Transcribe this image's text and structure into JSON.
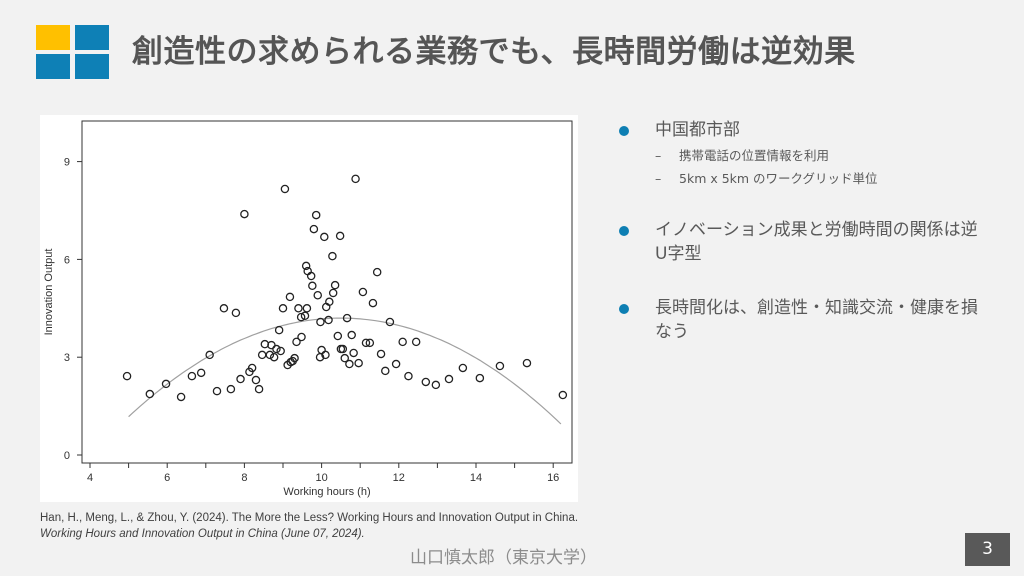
{
  "title": "創造性の求められる業務でも、長時間労働は逆効果",
  "logo_colors": {
    "yellow": "#ffc000",
    "blue": "#0e80b6"
  },
  "bullets": [
    {
      "text": "中国都市部",
      "sub": [
        "携帯電話の位置情報を利用",
        "5km x 5km のワークグリッド単位"
      ]
    },
    {
      "text": "イノベーション成果と労働時間の関係は逆U字型",
      "sub": []
    },
    {
      "text": "長時間化は、創造性・知識交流・健康を損なう",
      "sub": []
    }
  ],
  "citation": {
    "plain": "Han, H., Meng, L., & Zhou, Y. (2024). The More the Less? Working Hours and Innovation Output in China. ",
    "italic": "Working Hours and Innovation Output in China (June 07, 2024)."
  },
  "author": "山口慎太郎（東京大学）",
  "page_number": "3",
  "chart_data": {
    "type": "scatter",
    "xlabel": "Working hours (h)",
    "ylabel": "Innovation Output",
    "xlim": [
      4,
      16.3
    ],
    "ylim": [
      0,
      10.2
    ],
    "xticks": [
      4,
      6,
      8,
      10,
      12,
      14,
      16
    ],
    "yticks": [
      0,
      3,
      6,
      9
    ],
    "grid": false,
    "marker": "hollow-circle",
    "fit": {
      "type": "quadratic",
      "vertex_x": 10.5,
      "vertex_y": 4.2,
      "a": -0.1,
      "x_range": [
        5,
        16.2
      ],
      "color": "#a0a0a0"
    },
    "points": [
      [
        4.96,
        2.42
      ],
      [
        5.55,
        1.87
      ],
      [
        5.97,
        2.18
      ],
      [
        6.36,
        1.78
      ],
      [
        6.64,
        2.42
      ],
      [
        6.88,
        2.52
      ],
      [
        7.1,
        3.07
      ],
      [
        7.29,
        1.96
      ],
      [
        7.47,
        4.5
      ],
      [
        7.65,
        2.02
      ],
      [
        7.78,
        4.36
      ],
      [
        7.9,
        2.33
      ],
      [
        8.0,
        7.39
      ],
      [
        8.13,
        2.55
      ],
      [
        8.2,
        2.67
      ],
      [
        8.3,
        2.3
      ],
      [
        8.38,
        2.02
      ],
      [
        8.46,
        3.07
      ],
      [
        8.53,
        3.4
      ],
      [
        8.66,
        3.07
      ],
      [
        8.7,
        3.37
      ],
      [
        8.77,
        3.0
      ],
      [
        8.83,
        3.25
      ],
      [
        8.9,
        3.83
      ],
      [
        8.94,
        3.19
      ],
      [
        9.0,
        4.5
      ],
      [
        9.05,
        8.16
      ],
      [
        9.12,
        2.76
      ],
      [
        9.18,
        4.85
      ],
      [
        9.2,
        2.85
      ],
      [
        9.25,
        2.88
      ],
      [
        9.3,
        2.97
      ],
      [
        9.35,
        3.47
      ],
      [
        9.4,
        4.5
      ],
      [
        9.47,
        4.23
      ],
      [
        9.48,
        3.62
      ],
      [
        9.57,
        4.27
      ],
      [
        9.6,
        5.8
      ],
      [
        9.62,
        4.5
      ],
      [
        9.64,
        5.64
      ],
      [
        9.73,
        5.49
      ],
      [
        9.76,
        5.19
      ],
      [
        9.8,
        6.93
      ],
      [
        9.86,
        7.36
      ],
      [
        9.9,
        4.9
      ],
      [
        9.96,
        3.0
      ],
      [
        9.97,
        4.08
      ],
      [
        10.0,
        3.22
      ],
      [
        10.07,
        6.69
      ],
      [
        10.1,
        3.07
      ],
      [
        10.12,
        4.54
      ],
      [
        10.18,
        4.14
      ],
      [
        10.2,
        4.7
      ],
      [
        10.28,
        6.1
      ],
      [
        10.3,
        4.97
      ],
      [
        10.35,
        5.21
      ],
      [
        10.42,
        3.65
      ],
      [
        10.48,
        6.72
      ],
      [
        10.5,
        3.25
      ],
      [
        10.55,
        3.25
      ],
      [
        10.6,
        2.97
      ],
      [
        10.66,
        4.2
      ],
      [
        10.72,
        2.79
      ],
      [
        10.78,
        3.68
      ],
      [
        10.83,
        3.13
      ],
      [
        10.88,
        8.47
      ],
      [
        10.96,
        2.82
      ],
      [
        11.07,
        5.0
      ],
      [
        11.15,
        3.44
      ],
      [
        11.25,
        3.44
      ],
      [
        11.33,
        4.66
      ],
      [
        11.44,
        5.61
      ],
      [
        11.54,
        3.1
      ],
      [
        11.65,
        2.58
      ],
      [
        11.77,
        4.08
      ],
      [
        11.93,
        2.79
      ],
      [
        12.1,
        3.47
      ],
      [
        12.25,
        2.42
      ],
      [
        12.45,
        3.47
      ],
      [
        12.7,
        2.24
      ],
      [
        12.96,
        2.15
      ],
      [
        13.3,
        2.33
      ],
      [
        13.66,
        2.67
      ],
      [
        14.1,
        2.36
      ],
      [
        14.62,
        2.73
      ],
      [
        15.32,
        2.82
      ],
      [
        16.25,
        1.84
      ]
    ]
  }
}
